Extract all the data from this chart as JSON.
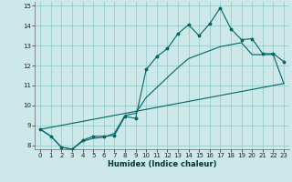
{
  "xlabel": "Humidex (Indice chaleur)",
  "bg_color": "#cce8e8",
  "grid_color": "#99cccc",
  "line_color": "#006666",
  "xlim": [
    -0.5,
    23.5
  ],
  "ylim": [
    7.8,
    15.2
  ],
  "xticks": [
    0,
    1,
    2,
    3,
    4,
    5,
    6,
    7,
    8,
    9,
    10,
    11,
    12,
    13,
    14,
    15,
    16,
    17,
    18,
    19,
    20,
    21,
    22,
    23
  ],
  "yticks": [
    8,
    9,
    10,
    11,
    12,
    13,
    14,
    15
  ],
  "line1_x": [
    0,
    1,
    2,
    3,
    4,
    5,
    6,
    7,
    8,
    9,
    10,
    11,
    12,
    13,
    14,
    15,
    16,
    17,
    18,
    19,
    20,
    21,
    22,
    23
  ],
  "line1_y": [
    8.8,
    8.45,
    7.9,
    7.8,
    8.25,
    8.45,
    8.45,
    8.5,
    9.45,
    9.35,
    11.8,
    12.45,
    12.85,
    13.6,
    14.05,
    13.5,
    14.1,
    14.9,
    13.85,
    13.3,
    13.35,
    12.6,
    12.6,
    12.2
  ],
  "line2_x": [
    0,
    1,
    2,
    3,
    4,
    5,
    6,
    7,
    8,
    9,
    10,
    11,
    12,
    13,
    14,
    15,
    16,
    17,
    18,
    19,
    20,
    21,
    22,
    23
  ],
  "line2_y": [
    8.8,
    8.45,
    7.9,
    7.8,
    8.2,
    8.35,
    8.4,
    8.6,
    9.5,
    9.6,
    10.4,
    10.9,
    11.4,
    11.9,
    12.35,
    12.55,
    12.75,
    12.95,
    13.05,
    13.15,
    12.55,
    12.55,
    12.55,
    11.1
  ],
  "line3_x": [
    0,
    23
  ],
  "line3_y": [
    8.8,
    11.1
  ]
}
